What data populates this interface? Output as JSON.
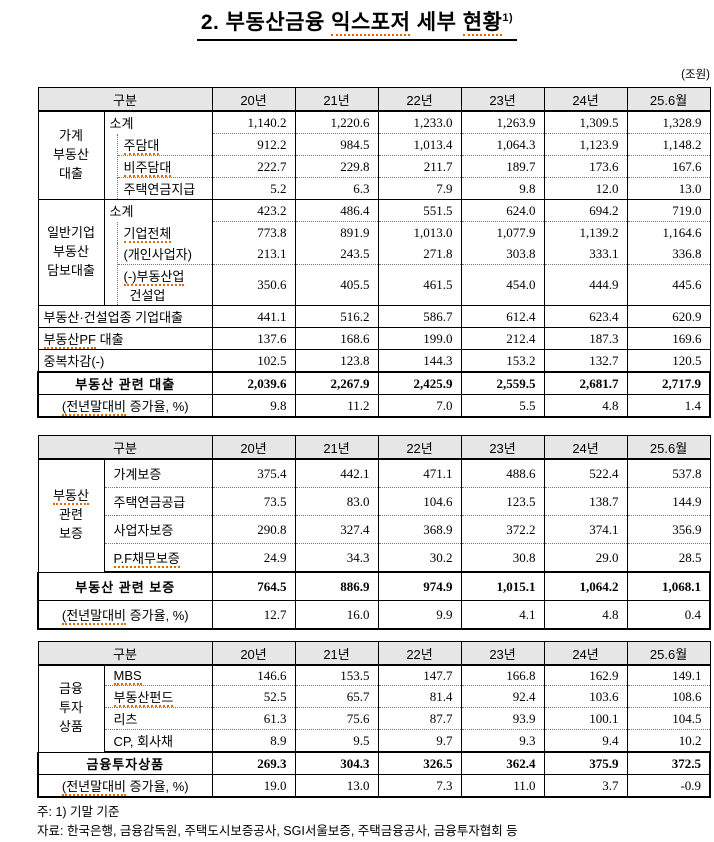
{
  "title": {
    "prefix": "2. 부동산금융",
    "sq1": "익스포저",
    "mid": "세부",
    "sq2": "현황",
    "sup": "1)"
  },
  "unit_label": "(조원)",
  "columns": [
    "구분",
    "20년",
    "21년",
    "22년",
    "23년",
    "24년",
    "25.6월"
  ],
  "loan": {
    "group1": [
      "가계",
      "부동산",
      "대출"
    ],
    "g1_rows": [
      {
        "label": "소계",
        "values": [
          "1,140.2",
          "1,220.6",
          "1,233.0",
          "1,263.9",
          "1,309.5",
          "1,328.9"
        ]
      },
      {
        "label": "주담대",
        "values": [
          "912.2",
          "984.5",
          "1,013.4",
          "1,064.3",
          "1,123.9",
          "1,148.2"
        ]
      },
      {
        "label": "비주담대",
        "values": [
          "222.7",
          "229.8",
          "211.7",
          "189.7",
          "173.6",
          "167.6"
        ]
      },
      {
        "label": "주택연금지급",
        "values": [
          "5.2",
          "6.3",
          "7.9",
          "9.8",
          "12.0",
          "13.0"
        ]
      }
    ],
    "group2": [
      "일반기업",
      "부동산",
      "담보대출"
    ],
    "g2_rows": [
      {
        "label": "소계",
        "values": [
          "423.2",
          "486.4",
          "551.5",
          "624.0",
          "694.2",
          "719.0"
        ]
      },
      {
        "label": "기업전체",
        "values": [
          "773.8",
          "891.9",
          "1,013.0",
          "1,077.9",
          "1,139.2",
          "1,164.6"
        ]
      },
      {
        "label": "(개인사업자)",
        "values": [
          "213.1",
          "243.5",
          "271.8",
          "303.8",
          "333.1",
          "336.8"
        ]
      },
      {
        "label_line1": "(-)부동산업",
        "label_line2": "건설업",
        "values": [
          "350.6",
          "405.5",
          "461.5",
          "454.0",
          "444.9",
          "445.6"
        ]
      }
    ],
    "rows": [
      {
        "label": "부동산·건설업종 기업대출",
        "values": [
          "441.1",
          "516.2",
          "586.7",
          "612.4",
          "623.4",
          "620.9"
        ]
      },
      {
        "label_sq": "부동산PF",
        "label_rest": " 대출",
        "values": [
          "137.6",
          "168.6",
          "199.0",
          "212.4",
          "187.3",
          "169.6"
        ]
      },
      {
        "label": "중복차감(-)",
        "values": [
          "102.5",
          "123.8",
          "144.3",
          "153.2",
          "132.7",
          "120.5"
        ]
      }
    ],
    "total": {
      "label": "부동산 관련 대출",
      "values": [
        "2,039.6",
        "2,267.9",
        "2,425.9",
        "2,559.5",
        "2,681.7",
        "2,717.9"
      ]
    },
    "growth": {
      "label_sq": "(전년말대비",
      "label_rest": " 증가율, %)",
      "values": [
        "9.8",
        "11.2",
        "7.0",
        "5.5",
        "4.8",
        "1.4"
      ]
    }
  },
  "guarantee": {
    "group": [
      "부동산",
      "관련",
      "보증"
    ],
    "rows": [
      {
        "label": "가계보증",
        "values": [
          "375.4",
          "442.1",
          "471.1",
          "488.6",
          "522.4",
          "537.8"
        ]
      },
      {
        "label": "주택연금공급",
        "values": [
          "73.5",
          "83.0",
          "104.6",
          "123.5",
          "138.7",
          "144.9"
        ]
      },
      {
        "label": "사업자보증",
        "values": [
          "290.8",
          "327.4",
          "368.9",
          "372.2",
          "374.1",
          "356.9"
        ]
      },
      {
        "label": "P.F채무보증",
        "values": [
          "24.9",
          "34.3",
          "30.2",
          "30.8",
          "29.0",
          "28.5"
        ]
      }
    ],
    "total": {
      "label": "부동산 관련 보증",
      "values": [
        "764.5",
        "886.9",
        "974.9",
        "1,015.1",
        "1,064.2",
        "1,068.1"
      ]
    },
    "growth": {
      "label_sq": "(전년말대비",
      "label_rest": " 증가율, %)",
      "values": [
        "12.7",
        "16.0",
        "9.9",
        "4.1",
        "4.8",
        "0.4"
      ]
    }
  },
  "investment": {
    "group": [
      "금융",
      "투자",
      "상품"
    ],
    "rows": [
      {
        "label": "MBS",
        "values": [
          "146.6",
          "153.5",
          "147.7",
          "166.8",
          "162.9",
          "149.1"
        ]
      },
      {
        "label": "부동산펀드",
        "values": [
          "52.5",
          "65.7",
          "81.4",
          "92.4",
          "103.6",
          "108.6"
        ]
      },
      {
        "label": "리츠",
        "values": [
          "61.3",
          "75.6",
          "87.7",
          "93.9",
          "100.1",
          "104.5"
        ]
      },
      {
        "label": "CP, 회사채",
        "values": [
          "8.9",
          "9.5",
          "9.7",
          "9.3",
          "9.4",
          "10.2"
        ]
      }
    ],
    "total": {
      "label": "금융투자상품",
      "values": [
        "269.3",
        "304.3",
        "326.5",
        "362.4",
        "375.9",
        "372.5"
      ]
    },
    "growth": {
      "label_sq": "(전년말대비",
      "label_rest": " 증가율, %)",
      "values": [
        "19.0",
        "13.0",
        "7.3",
        "11.0",
        "3.7",
        "-0.9"
      ]
    }
  },
  "footnotes": {
    "note": "주: 1) 기말 기준",
    "source": "자료: 한국은행, 금융감독원, 주택도시보증공사, SGI서울보증, 주택금융공사, 금융투자협회 등"
  }
}
